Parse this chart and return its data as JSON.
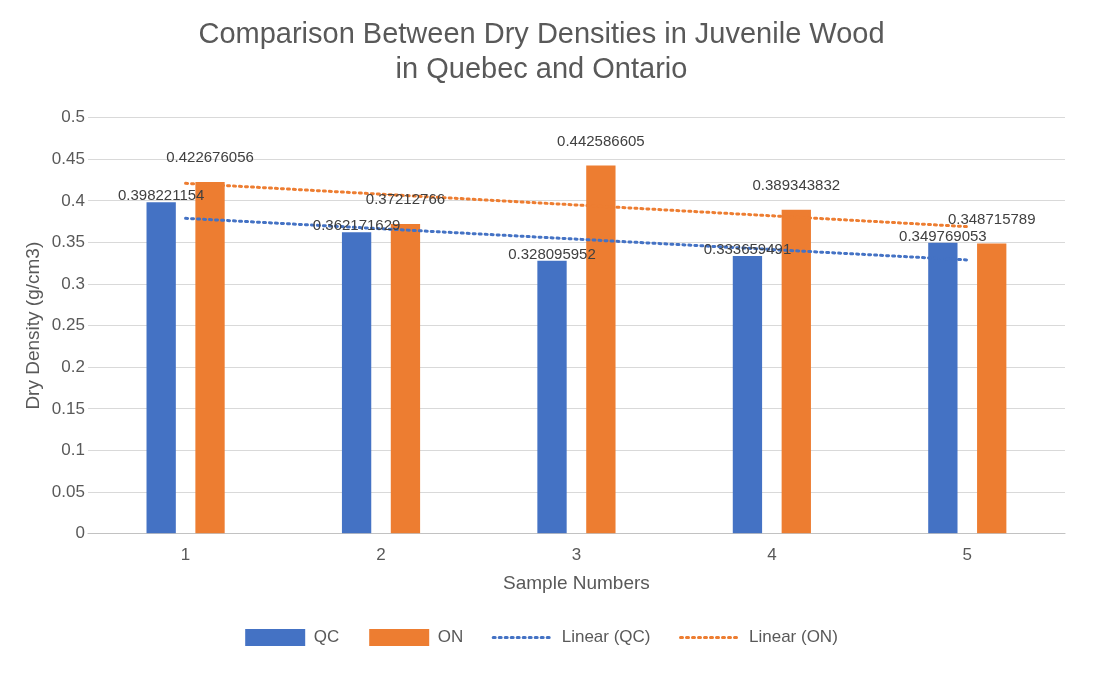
{
  "chart_data": {
    "type": "bar",
    "title": "Comparison Between Dry Densities in Juvenile Wood in Quebec and Ontario",
    "xlabel": "Sample Numbers",
    "ylabel": "Dry Density (g/cm3)",
    "categories": [
      "1",
      "2",
      "3",
      "4",
      "5"
    ],
    "series": [
      {
        "name": "QC",
        "color": "#4472c4",
        "values": [
          0.398221154,
          0.362171629,
          0.328095952,
          0.333659491,
          0.349769053
        ],
        "value_labels": [
          "0.398221154",
          "0.362171629",
          "0.328095952",
          "0.333659491",
          "0.349769053"
        ]
      },
      {
        "name": "ON",
        "color": "#ed7d31",
        "values": [
          0.422676056,
          0.37212766,
          0.442586605,
          0.389343832,
          0.348715789
        ],
        "value_labels": [
          "0.422676056",
          "0.37212766",
          "0.442586605",
          "0.389343832",
          "0.348715789"
        ]
      },
      {
        "name": "Linear (QC)",
        "type": "line",
        "color": "#4472c4",
        "x": [
          "1",
          "5"
        ],
        "values": [
          0.379,
          0.329
        ],
        "line_style": "dotted"
      },
      {
        "name": "Linear (ON)",
        "type": "line",
        "color": "#ed7d31",
        "x": [
          "1",
          "5"
        ],
        "values": [
          0.421,
          0.369
        ],
        "line_style": "dotted"
      }
    ],
    "ylim": [
      0,
      0.5
    ],
    "yticks": [
      0,
      0.05,
      0.1,
      0.15,
      0.2,
      0.25,
      0.3,
      0.35,
      0.4,
      0.45,
      0.5
    ],
    "grid": "y",
    "legend": "bottom"
  }
}
